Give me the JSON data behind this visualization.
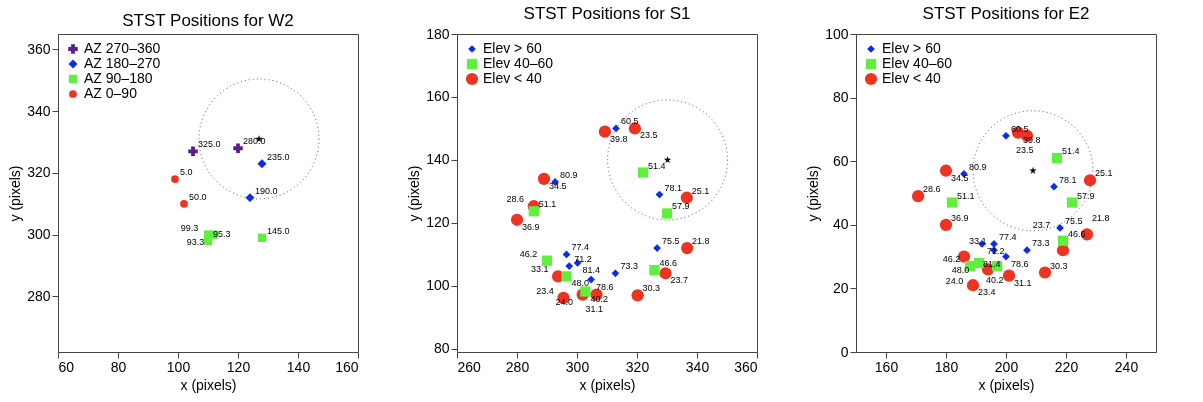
{
  "chart_data": [
    {
      "type": "scatter",
      "title": "STST Positions for W2",
      "xlabel": "x (pixels)",
      "ylabel": "y (pixels)",
      "xlim": [
        60,
        160
      ],
      "ylim": [
        262,
        365
      ],
      "xticks": [
        60,
        80,
        100,
        120,
        140,
        160
      ],
      "yticks": [
        280,
        300,
        320,
        340,
        360
      ],
      "legend": "top left",
      "series": [
        {
          "name": "AZ 270–360",
          "color": "#5a1d8c",
          "marker": "cross",
          "x": [
            105,
            120
          ],
          "values": [
            327,
            328
          ]
        },
        {
          "name": "AZ 180–270",
          "color": "#0a2cf2",
          "marker": "diamond",
          "x": [
            128,
            124
          ],
          "values": [
            323,
            312
          ]
        },
        {
          "name": "AZ 90–180",
          "color": "#5ef03c",
          "marker": "square",
          "x": [
            110,
            110,
            112,
            128
          ],
          "values": [
            298,
            300,
            300,
            299
          ]
        },
        {
          "name": "AZ 0–90",
          "color": "#ee3322",
          "marker": "circle",
          "x": [
            99,
            102
          ],
          "values": [
            318,
            310
          ]
        },
        {
          "color": "#000000",
          "marker": "star",
          "x": [
            127
          ],
          "values": [
            331
          ]
        }
      ],
      "annotations": [
        {
          "text": "325.0",
          "x": 105,
          "y": 327
        },
        {
          "text": "280.0",
          "x": 120,
          "y": 328
        },
        {
          "text": "235.0",
          "x": 128,
          "y": 323
        },
        {
          "text": "190.0",
          "x": 124,
          "y": 312
        },
        {
          "text": "95.3",
          "x": 110,
          "y": 298
        },
        {
          "text": "99.3",
          "x": 110,
          "y": 300
        },
        {
          "text": "93.3",
          "x": 112,
          "y": 300
        },
        {
          "text": "145.0",
          "x": 128,
          "y": 299
        },
        {
          "text": "5.0",
          "x": 99,
          "y": 318
        },
        {
          "text": "50.0",
          "x": 102,
          "y": 310
        }
      ]
    },
    {
      "type": "scatter",
      "title": "STST Positions for S1",
      "xlabel": "x (pixels)",
      "ylabel": "y (pixels)",
      "xlim": [
        260,
        360
      ],
      "ylim": [
        79,
        180
      ],
      "xticks": [
        260,
        280,
        300,
        320,
        340,
        360
      ],
      "yticks": [
        80,
        100,
        120,
        140,
        160,
        180
      ],
      "legend": "top left",
      "series": [
        {
          "name": "Elev > 60",
          "color": "#0a2cf2",
          "marker": "diamond",
          "x": [
            313,
            327.5,
            292.7,
            296.5,
            297.4,
            300.2,
            304.7,
            312.8,
            326.7
          ],
          "values": [
            150,
            129,
            133,
            110,
            106.3,
            107.3,
            102,
            104,
            112
          ]
        },
        {
          "name": "Elev 40–60",
          "color": "#5ef03c",
          "marker": "square",
          "x": [
            322,
            330,
            285.6,
            290,
            296.5,
            302.8,
            325.8
          ],
          "values": [
            136,
            123,
            123.7,
            108,
            103,
            98.2,
            105
          ]
        },
        {
          "name": "Elev < 40",
          "color": "#ee3322",
          "marker": "circle",
          "x": [
            309.3,
            319.3,
            289,
            336.6,
            285.6,
            280,
            293.7,
            295.5,
            301.9,
            306.5,
            320.2,
            336.7,
            329.5
          ],
          "values": [
            149,
            150,
            134,
            128,
            125.3,
            121,
            103,
            96.2,
            97.2,
            97.2,
            97,
            112,
            104
          ]
        },
        {
          "color": "#000000",
          "marker": "star",
          "x": [
            330.2
          ],
          "values": [
            140
          ]
        }
      ],
      "annotations": [
        {
          "text": "60.5",
          "x": 313,
          "y": 150
        },
        {
          "text": "78.1",
          "x": 327.5,
          "y": 129
        },
        {
          "text": "80.9",
          "x": 292.7,
          "y": 133
        },
        {
          "text": "77.4",
          "x": 296.5,
          "y": 110
        },
        {
          "text": "71.2",
          "x": 297.4,
          "y": 106.3
        },
        {
          "text": "81.4",
          "x": 300.2,
          "y": 107.3
        },
        {
          "text": "78.6",
          "x": 304.7,
          "y": 102
        },
        {
          "text": "73.3",
          "x": 312.8,
          "y": 104
        },
        {
          "text": "75.5",
          "x": 326.7,
          "y": 112
        },
        {
          "text": "51.4",
          "x": 322,
          "y": 136
        },
        {
          "text": "57.9",
          "x": 330,
          "y": 123
        },
        {
          "text": "51.1",
          "x": 285.6,
          "y": 123.7
        },
        {
          "text": "46.2",
          "x": 290,
          "y": 108
        },
        {
          "text": "48.0",
          "x": 296.5,
          "y": 103
        },
        {
          "text": "40.2",
          "x": 302.8,
          "y": 98.2
        },
        {
          "text": "46.6",
          "x": 325.8,
          "y": 105
        },
        {
          "text": "39.8",
          "x": 309.3,
          "y": 149
        },
        {
          "text": "23.5",
          "x": 319.3,
          "y": 150
        },
        {
          "text": "34.5",
          "x": 289,
          "y": 134
        },
        {
          "text": "25.1",
          "x": 336.6,
          "y": 128
        },
        {
          "text": "28.6",
          "x": 285.6,
          "y": 125.3
        },
        {
          "text": "36.9",
          "x": 280,
          "y": 121
        },
        {
          "text": "33.1",
          "x": 293.7,
          "y": 103
        },
        {
          "text": "23.4",
          "x": 295.5,
          "y": 96.2
        },
        {
          "text": "24.0",
          "x": 301.9,
          "y": 97.2
        },
        {
          "text": "31.1",
          "x": 306.5,
          "y": 97.2
        },
        {
          "text": "30.3",
          "x": 320.2,
          "y": 97
        },
        {
          "text": "21.8",
          "x": 336.7,
          "y": 112
        },
        {
          "text": "23.7",
          "x": 329.5,
          "y": 104
        }
      ]
    },
    {
      "type": "scatter",
      "title": "STST Positions for E2",
      "xlabel": "x (pixels)",
      "ylabel": "y (pixels)",
      "xlim": [
        150,
        250
      ],
      "ylim": [
        0,
        100
      ],
      "xticks": [
        160,
        180,
        200,
        220,
        240
      ],
      "yticks": [
        0,
        20,
        40,
        60,
        80,
        100
      ],
      "legend": "top left",
      "series": [
        {
          "name": "Elev > 60",
          "color": "#0a2cf2",
          "marker": "diamond",
          "x": [
            200,
            216,
            186,
            196,
            192,
            196,
            200,
            207,
            218
          ],
          "values": [
            68,
            52,
            56,
            34,
            34,
            32,
            30,
            32,
            39
          ]
        },
        {
          "name": "Elev 40–60",
          "color": "#5ef03c",
          "marker": "square",
          "x": [
            217,
            222,
            182,
            188,
            191,
            197,
            219
          ],
          "values": [
            61,
            47,
            47,
            27,
            28,
            27,
            35
          ]
        },
        {
          "name": "Elev < 40",
          "color": "#ee3322",
          "marker": "circle",
          "x": [
            204,
            207,
            180,
            228,
            170.7,
            180,
            186,
            189,
            194,
            201,
            213,
            227,
            219
          ],
          "values": [
            69,
            68,
            57,
            54,
            49,
            40,
            30,
            21,
            26,
            24,
            25,
            37,
            32
          ]
        },
        {
          "color": "#000000",
          "marker": "star",
          "x": [
            209
          ],
          "values": [
            57
          ]
        }
      ],
      "annotations": [
        {
          "text": "60.5",
          "x": 200,
          "y": 68
        },
        {
          "text": "78.1",
          "x": 216,
          "y": 52
        },
        {
          "text": "80.9",
          "x": 186,
          "y": 56
        },
        {
          "text": "77.4",
          "x": 196,
          "y": 34
        },
        {
          "text": "71.2",
          "x": 192,
          "y": 34
        },
        {
          "text": "81.4",
          "x": 196,
          "y": 32
        },
        {
          "text": "78.6",
          "x": 200,
          "y": 30
        },
        {
          "text": "73.3",
          "x": 207,
          "y": 32
        },
        {
          "text": "75.5",
          "x": 218,
          "y": 39
        },
        {
          "text": "51.4",
          "x": 217,
          "y": 61
        },
        {
          "text": "57.9",
          "x": 222,
          "y": 47
        },
        {
          "text": "51.1",
          "x": 182,
          "y": 47
        },
        {
          "text": "46.2",
          "x": 188,
          "y": 27
        },
        {
          "text": "48.0",
          "x": 191,
          "y": 28
        },
        {
          "text": "40.2",
          "x": 197,
          "y": 27
        },
        {
          "text": "46.6",
          "x": 219,
          "y": 35
        },
        {
          "text": "39.8",
          "x": 204,
          "y": 69
        },
        {
          "text": "23.5",
          "x": 207,
          "y": 68
        },
        {
          "text": "34.5",
          "x": 180,
          "y": 57
        },
        {
          "text": "25.1",
          "x": 228,
          "y": 54
        },
        {
          "text": "28.6",
          "x": 170.7,
          "y": 49
        },
        {
          "text": "36.9",
          "x": 180,
          "y": 40
        },
        {
          "text": "33.1",
          "x": 186,
          "y": 30
        },
        {
          "text": "23.4",
          "x": 189,
          "y": 21
        },
        {
          "text": "24.0",
          "x": 194,
          "y": 26
        },
        {
          "text": "31.1",
          "x": 201,
          "y": 24
        },
        {
          "text": "30.3",
          "x": 213,
          "y": 25
        },
        {
          "text": "21.8",
          "x": 227,
          "y": 37
        },
        {
          "text": "23.7",
          "x": 219,
          "y": 32
        }
      ]
    }
  ]
}
